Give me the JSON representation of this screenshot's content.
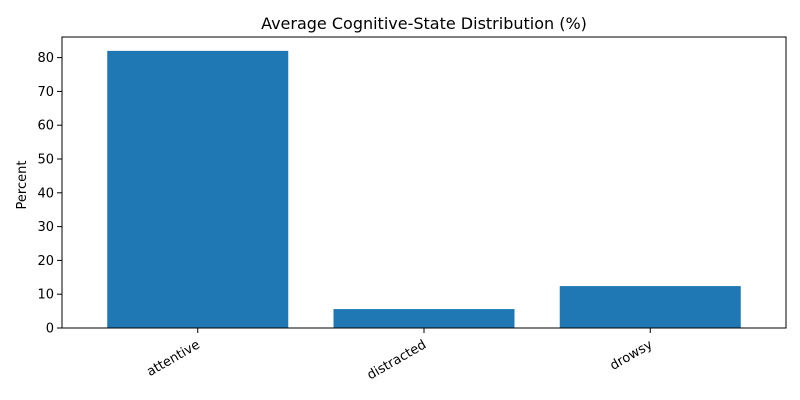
{
  "chart_data": {
    "type": "bar",
    "title": "Average Cognitive-State Distribution (%)",
    "xlabel": "",
    "ylabel": "Percent",
    "categories": [
      "attentive",
      "distracted",
      "drowsy"
    ],
    "values": [
      82.0,
      5.6,
      12.4
    ],
    "ylim": [
      0,
      86.1
    ],
    "yticks": [
      0,
      10,
      20,
      30,
      40,
      50,
      60,
      70,
      80
    ],
    "ytick_labels": [
      "0",
      "10",
      "20",
      "30",
      "40",
      "50",
      "60",
      "70",
      "80"
    ],
    "grid": false,
    "legend": "none",
    "colors": {
      "bar": "#1f77b4",
      "axis": "#000000",
      "background": "#ffffff"
    }
  }
}
